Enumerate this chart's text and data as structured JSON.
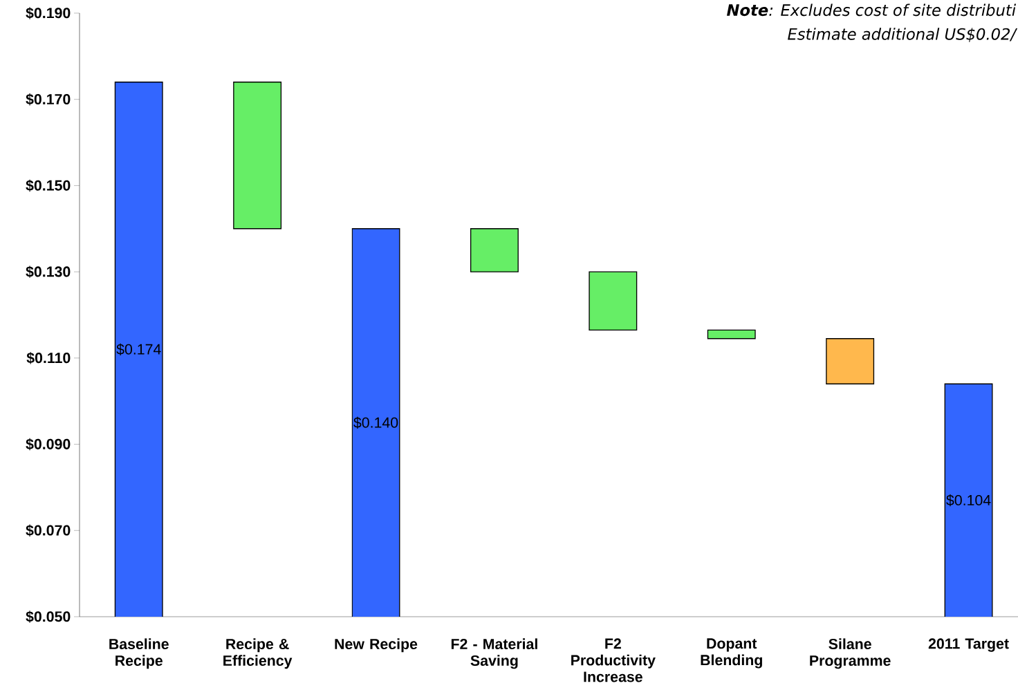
{
  "chart_data": {
    "type": "bar",
    "categories": [
      "Baseline Recipe",
      "Recipe & Efficiency",
      "New Recipe",
      "F2 - Material Saving",
      "F2 Productivity Increase",
      "Dopant Blending",
      "Silane Programme",
      "2011 Target"
    ],
    "values": [
      0.174,
      -0.034,
      0.14,
      -0.01,
      -0.0135,
      -0.002,
      -0.0105,
      0.104
    ],
    "base": [
      null,
      0.174,
      null,
      0.14,
      0.13,
      0.1165,
      0.1145,
      null
    ],
    "colors": [
      "#3366ff",
      "#66ee66",
      "#3366ff",
      "#66ee66",
      "#66ee66",
      "#66ee66",
      "#ffb84d",
      "#3366ff"
    ],
    "value_labels": [
      "$0.174",
      null,
      "$0.140",
      null,
      null,
      null,
      null,
      "$0.104"
    ],
    "ylim": [
      0.05,
      0.19
    ],
    "yticks": [
      {
        "value": 0.05,
        "label": "$0.050"
      },
      {
        "value": 0.07,
        "label": "$0.070"
      },
      {
        "value": 0.09,
        "label": "$0.090"
      },
      {
        "value": 0.11,
        "label": "$0.110"
      },
      {
        "value": 0.13,
        "label": "$0.130"
      },
      {
        "value": 0.15,
        "label": "$0.150"
      },
      {
        "value": 0.17,
        "label": "$0.170"
      },
      {
        "value": 0.19,
        "label": "$0.190"
      }
    ],
    "annotations": [
      "**Note**: Excludes cost of site distributi",
      "Estimate additional US$0.02/"
    ]
  }
}
